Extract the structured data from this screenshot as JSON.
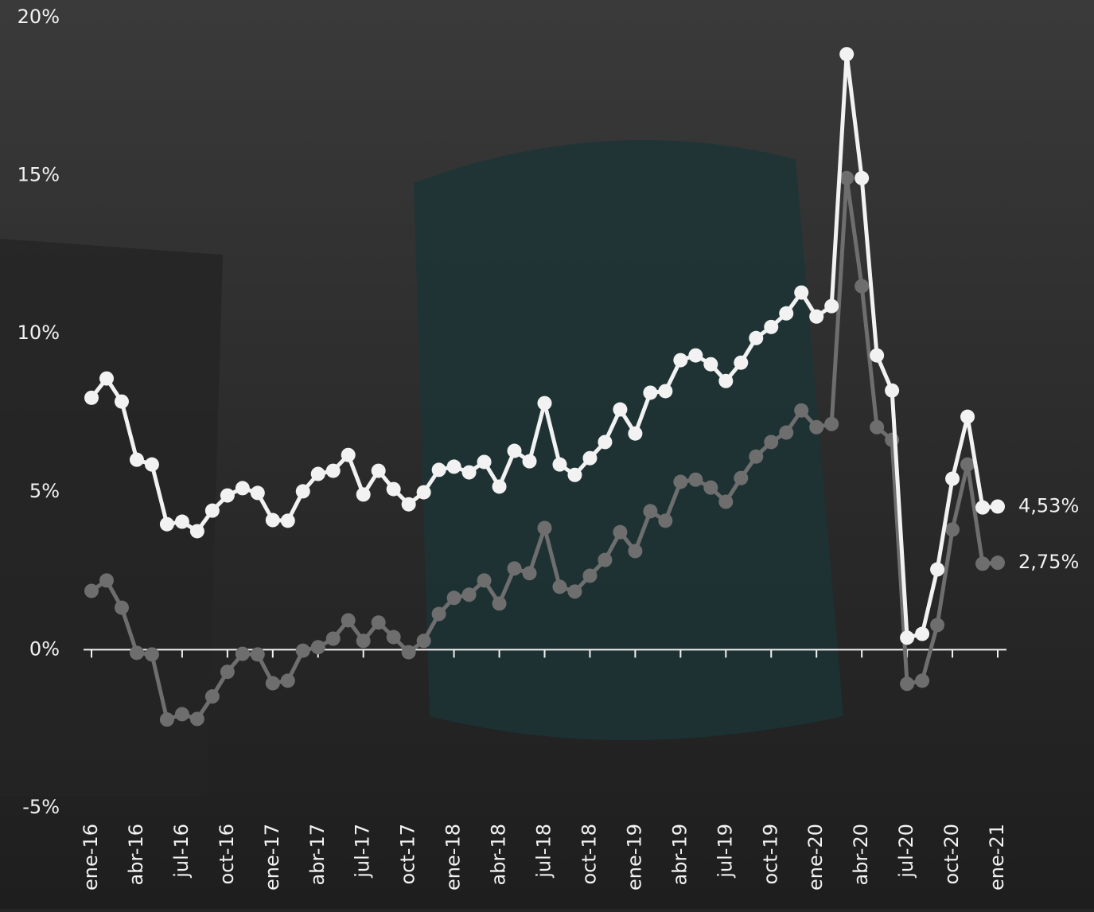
{
  "chart_data": {
    "type": "line",
    "categories": [
      "ene-16",
      null,
      null,
      "abr-16",
      null,
      null,
      "jul-16",
      null,
      null,
      "oct-16",
      null,
      null,
      "ene-17",
      null,
      null,
      "abr-17",
      null,
      null,
      "jul-17",
      null,
      null,
      "oct-17",
      null,
      null,
      "ene-18",
      null,
      null,
      "abr-18",
      null,
      null,
      "jul-18",
      null,
      null,
      "oct-18",
      null,
      null,
      "ene-19",
      null,
      null,
      "abr-19",
      null,
      null,
      "jul-19",
      null,
      null,
      "oct-19",
      null,
      null,
      "ene-20",
      null,
      null,
      "abr-20",
      null,
      null,
      "jul-20",
      null,
      null,
      "oct-20",
      null,
      null,
      "ene-21"
    ],
    "series": [
      {
        "color": "#f2f2f2",
        "values": [
          7.97,
          8.58,
          7.85,
          6.01,
          5.86,
          3.97,
          4.05,
          3.75,
          4.4,
          4.88,
          5.11,
          4.96,
          4.1,
          4.08,
          5.01,
          5.56,
          5.66,
          6.16,
          4.91,
          5.66,
          5.08,
          4.6,
          4.98,
          5.69,
          5.79,
          5.61,
          5.94,
          5.16,
          6.29,
          5.96,
          7.8,
          5.86,
          5.53,
          6.06,
          6.57,
          7.6,
          6.84,
          8.13,
          8.18,
          9.16,
          9.31,
          9.03,
          8.5,
          9.08,
          9.86,
          10.21,
          10.64,
          11.3,
          10.54,
          10.87,
          18.84,
          14.92,
          9.31,
          8.2,
          0.38,
          0.5,
          2.54,
          5.41,
          7.37,
          4.5,
          4.53
        ],
        "value_labels": [
          null,
          null,
          null,
          null,
          null,
          null,
          null,
          null,
          null,
          null,
          null,
          null,
          null,
          null,
          null,
          null,
          null,
          null,
          null,
          null,
          null,
          null,
          null,
          null,
          null,
          null,
          null,
          null,
          null,
          null,
          null,
          null,
          null,
          null,
          null,
          null,
          null,
          null,
          null,
          null,
          null,
          null,
          null,
          null,
          null,
          null,
          null,
          null,
          null,
          null,
          null,
          null,
          null,
          null,
          null,
          null,
          null,
          null,
          null,
          null,
          "4,53%"
        ]
      },
      {
        "color": "#6e6e6e",
        "values": [
          1.86,
          2.19,
          1.33,
          -0.1,
          -0.15,
          -2.21,
          -2.04,
          -2.19,
          -1.48,
          -0.7,
          -0.13,
          -0.15,
          -1.06,
          -0.98,
          -0.03,
          0.08,
          0.35,
          0.93,
          0.28,
          0.86,
          0.4,
          -0.08,
          0.28,
          1.13,
          1.64,
          1.74,
          2.19,
          1.46,
          2.57,
          2.42,
          3.85,
          1.99,
          1.84,
          2.34,
          2.84,
          3.72,
          3.12,
          4.38,
          4.08,
          5.31,
          5.38,
          5.13,
          4.68,
          5.43,
          6.11,
          6.57,
          6.87,
          7.57,
          7.04,
          7.14,
          14.92,
          11.5,
          7.04,
          6.64,
          -1.08,
          -0.98,
          0.78,
          3.8,
          5.86,
          2.72,
          2.75
        ],
        "value_labels": [
          null,
          null,
          null,
          null,
          null,
          null,
          null,
          null,
          null,
          null,
          null,
          null,
          null,
          null,
          null,
          null,
          null,
          null,
          null,
          null,
          null,
          null,
          null,
          null,
          null,
          null,
          null,
          null,
          null,
          null,
          null,
          null,
          null,
          null,
          null,
          null,
          null,
          null,
          null,
          null,
          null,
          null,
          null,
          null,
          null,
          null,
          null,
          null,
          null,
          null,
          null,
          null,
          null,
          null,
          null,
          null,
          null,
          null,
          null,
          null,
          "2,75%"
        ]
      }
    ],
    "ylim": [
      -5,
      20
    ],
    "yticks": [
      {
        "value": -5,
        "label": "-5%"
      },
      {
        "value": 0,
        "label": "0%"
      },
      {
        "value": 5,
        "label": "5%"
      },
      {
        "value": 10,
        "label": "10%"
      },
      {
        "value": 15,
        "label": "15%"
      },
      {
        "value": 20,
        "label": "20%"
      }
    ],
    "grid": false
  }
}
